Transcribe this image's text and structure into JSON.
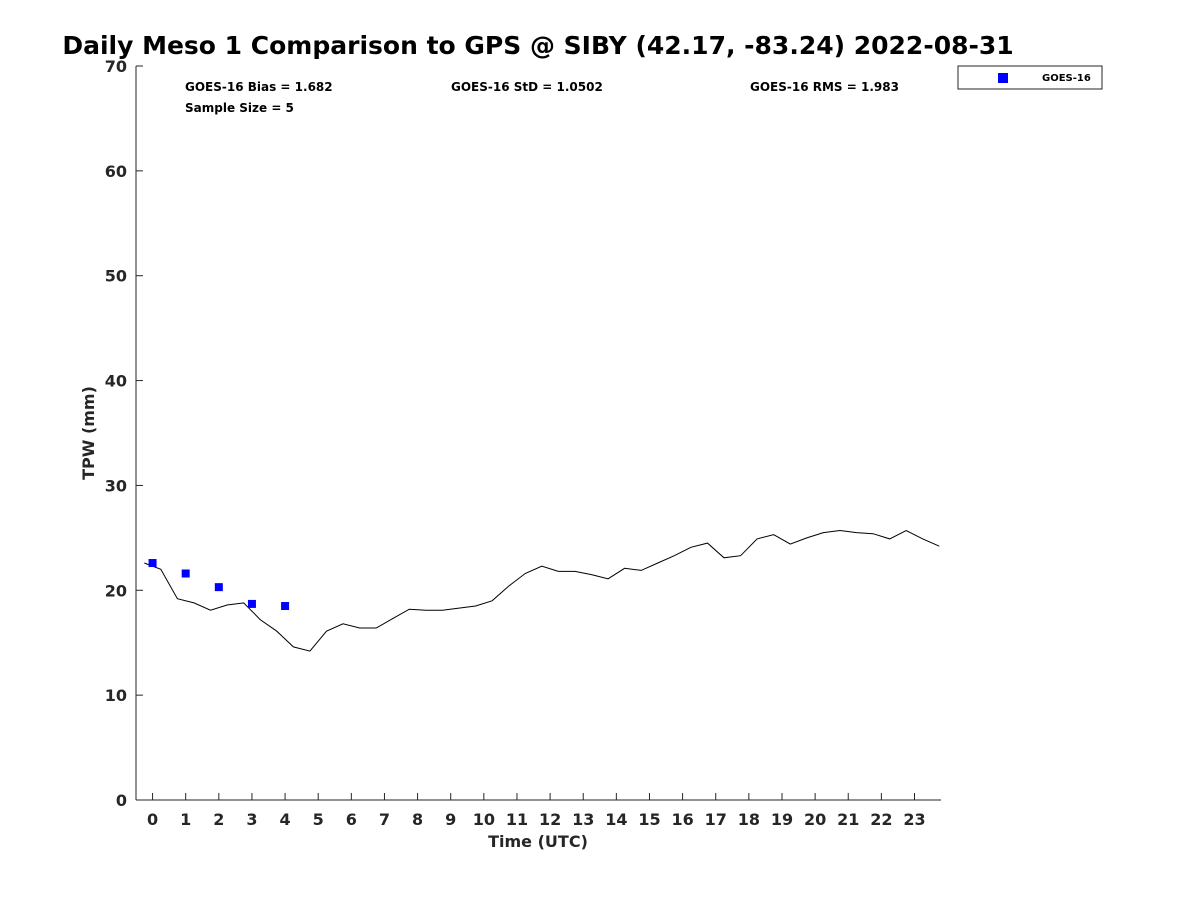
{
  "chart_data": {
    "type": "scatter",
    "title": "Daily Meso 1 Comparison to GPS @ SIBY (42.17, -83.24) 2022-08-31",
    "xlabel": "Time (UTC)",
    "ylabel": "TPW (mm)",
    "xlim": [
      -0.5,
      23.8
    ],
    "ylim": [
      0,
      70
    ],
    "xticks": [
      0,
      1,
      2,
      3,
      4,
      5,
      6,
      7,
      8,
      9,
      10,
      11,
      12,
      13,
      14,
      15,
      16,
      17,
      18,
      19,
      20,
      21,
      22,
      23
    ],
    "yticks": [
      0,
      10,
      20,
      30,
      40,
      50,
      60,
      70
    ],
    "grid": false,
    "legend_position": "top-right, outside plot",
    "stats": {
      "bias": "GOES-16 Bias = 1.682",
      "std": "GOES-16 StD = 1.0502",
      "rms": "GOES-16 RMS = 1.983",
      "sample": "Sample Size = 5"
    },
    "series": [
      {
        "name": "GOES-16",
        "kind": "scatter",
        "marker": "square",
        "color": "#0000ff",
        "x": [
          0,
          1,
          2,
          3,
          4
        ],
        "y": [
          22.6,
          21.6,
          20.3,
          18.7,
          18.5
        ]
      },
      {
        "kind": "line",
        "color": "#000000",
        "x": [
          -0.25,
          0.25,
          0.75,
          1.25,
          1.75,
          2.25,
          2.75,
          3.25,
          3.75,
          4.25,
          4.75,
          5.25,
          5.75,
          6.25,
          6.75,
          7.25,
          7.75,
          8.25,
          8.75,
          9.25,
          9.75,
          10.25,
          10.75,
          11.25,
          11.75,
          12.25,
          12.75,
          13.25,
          13.75,
          14.25,
          14.75,
          15.25,
          15.75,
          16.25,
          16.75,
          17.25,
          17.75,
          18.25,
          18.75,
          19.25,
          19.75,
          20.25,
          20.75,
          21.25,
          21.75,
          22.25,
          22.75,
          23.25,
          23.75
        ],
        "y": [
          22.6,
          22.0,
          19.2,
          18.8,
          18.1,
          18.6,
          18.8,
          17.2,
          16.1,
          14.6,
          14.2,
          16.1,
          16.8,
          16.4,
          16.4,
          17.3,
          18.2,
          18.1,
          18.1,
          18.3,
          18.5,
          19.0,
          20.4,
          21.6,
          22.3,
          21.8,
          21.8,
          21.5,
          21.1,
          22.1,
          21.9,
          22.6,
          23.3,
          24.1,
          24.5,
          23.1,
          23.3,
          24.9,
          25.3,
          24.4,
          25.0,
          25.5,
          25.7,
          25.5,
          25.4,
          24.9,
          25.7,
          24.9,
          24.2
        ]
      }
    ]
  }
}
